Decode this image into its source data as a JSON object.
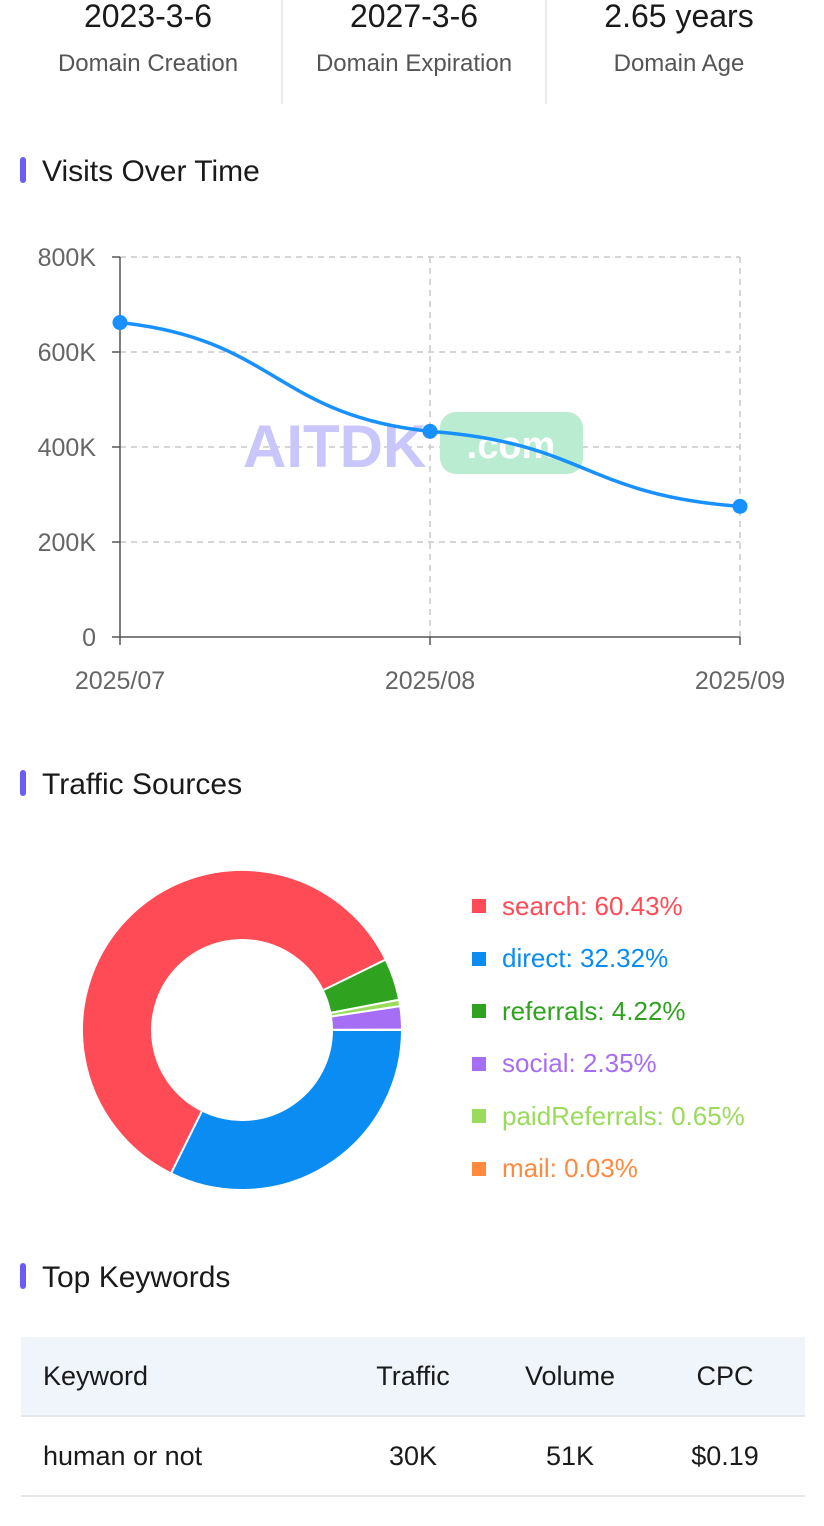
{
  "stats": [
    {
      "value": "2023-3-6",
      "label": "Domain Creation"
    },
    {
      "value": "2027-3-6",
      "label": "Domain Expiration"
    },
    {
      "value": "2.65 years",
      "label": "Domain Age"
    }
  ],
  "sections": {
    "visits_title": "Visits Over Time",
    "traffic_title": "Traffic Sources",
    "keywords_title": "Top Keywords"
  },
  "watermark": {
    "text": "AITDK",
    "badge": ".com"
  },
  "colors": {
    "accent": "#6b5cf6",
    "line": "#1890ff"
  },
  "chart_data": [
    {
      "type": "line",
      "x": [
        "2025/07",
        "2025/08",
        "2025/09"
      ],
      "series": [
        {
          "values": [
            662000,
            433000,
            275000
          ]
        }
      ],
      "ylim": [
        0,
        800000
      ],
      "yticks": [
        "0",
        "200K",
        "400K",
        "600K",
        "800K"
      ],
      "grid": true
    },
    {
      "type": "pie",
      "labels": [
        "search",
        "direct",
        "referrals",
        "social",
        "paidReferrals",
        "mail"
      ],
      "values": [
        60.43,
        32.32,
        4.22,
        2.35,
        0.65,
        0.03
      ],
      "legend_text": [
        "search: 60.43%",
        "direct: 32.32%",
        "referrals: 4.22%",
        "social: 2.35%",
        "paidReferrals: 0.65%",
        "mail: 0.03%"
      ],
      "colors": [
        "#ff4b55",
        "#0a8cf3",
        "#2fa31f",
        "#a66df5",
        "#9bdb5c",
        "#ff8a3d"
      ],
      "legend": "right"
    }
  ],
  "table": {
    "headers": [
      "Keyword",
      "Traffic",
      "Volume",
      "CPC"
    ],
    "rows": [
      [
        "human or not",
        "30K",
        "51K",
        "$0.19"
      ]
    ]
  }
}
